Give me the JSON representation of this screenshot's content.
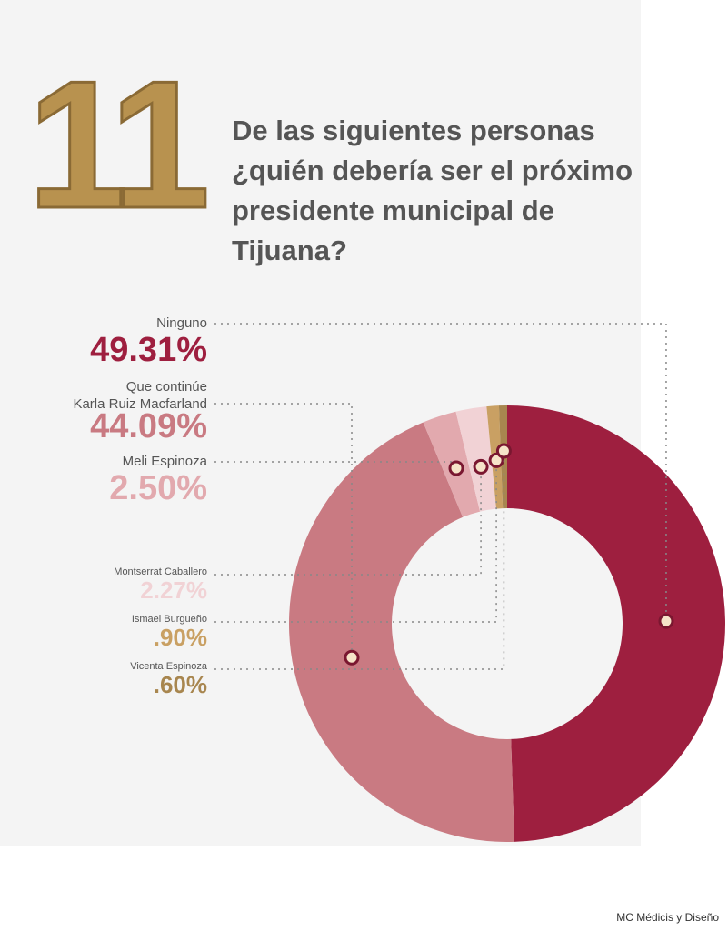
{
  "chart_data": {
    "type": "pie",
    "number": "11",
    "title": "De las siguientes personas ¿quién debería ser el próximo presidente municipal de Tijuana?",
    "categories": [
      "Ninguno",
      "Que continúe\nKarla Ruiz Macfarland",
      "Meli Espinoza",
      "Montserrat Caballero",
      "Ismael Burgueño",
      "Vicenta Espinoza"
    ],
    "values": [
      49.31,
      44.09,
      2.5,
      2.27,
      0.9,
      0.6
    ],
    "value_labels": [
      "49.31%",
      "44.09%",
      "2.50%",
      "2.27%",
      ".90%",
      ".60%"
    ],
    "colors": [
      "#9e1f3f",
      "#c97a82",
      "#e2a9ae",
      "#f1d2d5",
      "#c9a063",
      "#a8864f"
    ],
    "source": "MC Médicis y Diseño"
  }
}
